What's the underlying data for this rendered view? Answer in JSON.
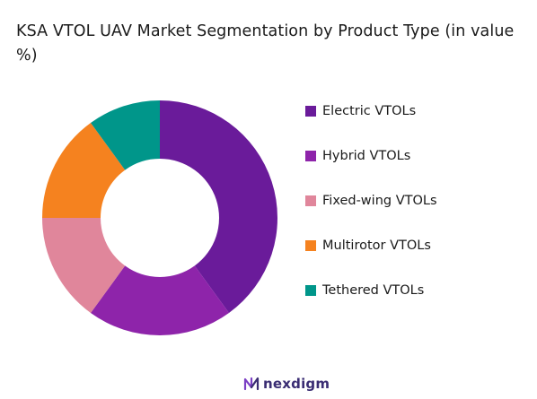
{
  "title": "KSA VTOL UAV Market Segmentation by Product Type (in value %)",
  "brand": {
    "name": "nexdigm",
    "logo_icon": "nexdigm-logo-icon",
    "color": "#3a2d73"
  },
  "chart_data": {
    "type": "donut",
    "title": "KSA VTOL UAV Market Segmentation by Product Type (in value %)",
    "categories": [
      "Electric VTOLs",
      "Hybrid VTOLs",
      "Fixed-wing VTOLs",
      "Multirotor VTOLs",
      "Tethered VTOLs"
    ],
    "values": [
      40,
      20,
      15,
      15,
      10
    ],
    "colors": [
      "#6a1b9a",
      "#8e24aa",
      "#e0869b",
      "#f5821f",
      "#00968a"
    ],
    "legend_placement": "right",
    "start_angle_deg": 0,
    "direction": "clockwise"
  }
}
